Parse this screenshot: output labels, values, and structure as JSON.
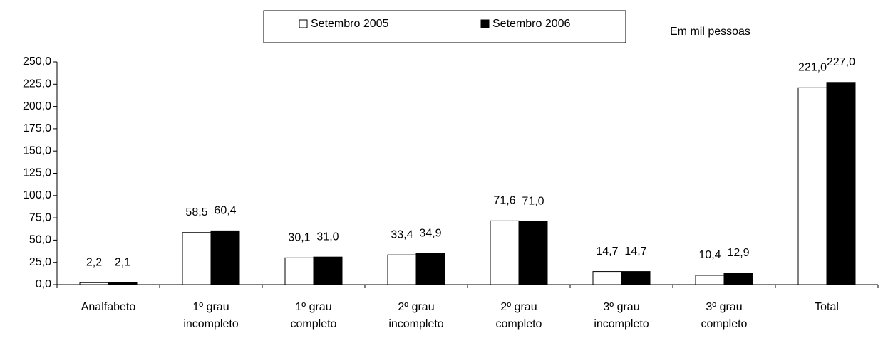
{
  "chart_data": {
    "type": "bar",
    "unit_label": "Em mil pessoas",
    "categories": [
      "Analfabeto",
      "1º grau incompleto",
      "1º grau completo",
      "2º grau incompleto",
      "2º grau completo",
      "3º grau incompleto",
      "3º grau completo",
      "Total"
    ],
    "series": [
      {
        "name": "Setembro 2005",
        "color": "#ffffff",
        "values": [
          2.2,
          58.5,
          30.1,
          33.4,
          71.6,
          14.7,
          10.4,
          221.0
        ],
        "value_labels": [
          "2,2",
          "58,5",
          "30,1",
          "33,4",
          "71,6",
          "14,7",
          "10,4",
          "221,0"
        ]
      },
      {
        "name": "Setembro 2006",
        "color": "#000000",
        "values": [
          2.1,
          60.4,
          31.0,
          34.9,
          71.0,
          14.7,
          12.9,
          227.0
        ],
        "value_labels": [
          "2,1",
          "60,4",
          "31,0",
          "34,9",
          "71,0",
          "14,7",
          "12,9",
          "227,0"
        ]
      }
    ],
    "ylim": [
      0,
      250
    ],
    "yticks": [
      {
        "value": 0,
        "label": "0,0"
      },
      {
        "value": 25,
        "label": "25,0"
      },
      {
        "value": 50,
        "label": "50,0"
      },
      {
        "value": 75,
        "label": "75,0"
      },
      {
        "value": 100,
        "label": "100,0"
      },
      {
        "value": 125,
        "label": "125,0"
      },
      {
        "value": 150,
        "label": "150,0"
      },
      {
        "value": 175,
        "label": "175,0"
      },
      {
        "value": 200,
        "label": "200,0"
      },
      {
        "value": 225,
        "label": "225,0"
      },
      {
        "value": 250,
        "label": "250,0"
      }
    ],
    "grid": false,
    "legend": "top"
  }
}
